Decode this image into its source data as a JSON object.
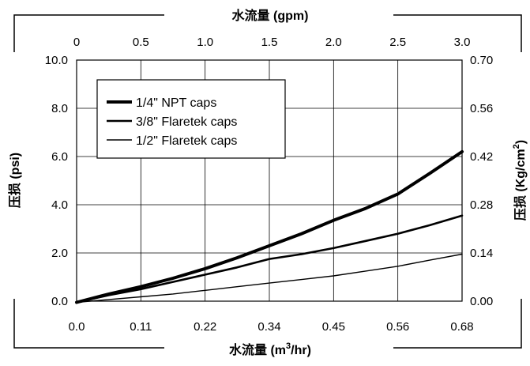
{
  "chart_data": {
    "type": "line",
    "title": "",
    "x": [
      0.0,
      0.057,
      0.113,
      0.17,
      0.227,
      0.283,
      0.34,
      0.397,
      0.453,
      0.51,
      0.567,
      0.623,
      0.68
    ],
    "x_axis_bottom": {
      "label_prefix": "水流量 (m",
      "label_sup": "3",
      "label_suffix": "/hr)",
      "ticks": [
        0.0,
        0.11,
        0.22,
        0.34,
        0.45,
        0.56,
        0.68
      ],
      "tick_labels": [
        "0.0",
        "0.11",
        "0.22",
        "0.34",
        "0.45",
        "0.56",
        "0.68"
      ],
      "range": [
        0.0,
        0.68
      ]
    },
    "x_axis_top": {
      "label": "水流量 (gpm)",
      "tick_labels": [
        "0",
        "0.5",
        "1.0",
        "1.5",
        "2.0",
        "2.5",
        "3.0"
      ],
      "range": [
        0,
        3.0
      ]
    },
    "y_axis_left": {
      "label": "压损 (psi)",
      "tick_labels": [
        "0.0",
        "2.0",
        "4.0",
        "6.0",
        "8.0",
        "10.0"
      ],
      "range": [
        0,
        10
      ]
    },
    "y_axis_right": {
      "label_prefix": "压损 (Kg/cm",
      "label_sup": "2",
      "label_suffix": ")",
      "tick_labels": [
        "0.00",
        "0.14",
        "0.28",
        "0.42",
        "0.56",
        "0.70"
      ],
      "range": [
        0,
        0.7
      ]
    },
    "grid": true,
    "legend_position": "top-left",
    "series": [
      {
        "name": "1/4\" NPT caps",
        "line_width": "thick",
        "color": "#000000",
        "values": [
          -0.05,
          0.3,
          0.6,
          0.95,
          1.35,
          1.8,
          2.3,
          2.8,
          3.35,
          3.85,
          4.45,
          5.3,
          6.2
        ]
      },
      {
        "name": "3/8\" Flaretek caps",
        "line_width": "medium",
        "color": "#000000",
        "values": [
          -0.05,
          0.25,
          0.5,
          0.8,
          1.1,
          1.4,
          1.75,
          1.95,
          2.2,
          2.5,
          2.8,
          3.15,
          3.55
        ]
      },
      {
        "name": "1/2\" Flaretek caps",
        "line_width": "thin",
        "color": "#000000",
        "values": [
          -0.05,
          0.07,
          0.18,
          0.3,
          0.45,
          0.6,
          0.75,
          0.9,
          1.05,
          1.25,
          1.45,
          1.7,
          1.95
        ]
      }
    ]
  }
}
